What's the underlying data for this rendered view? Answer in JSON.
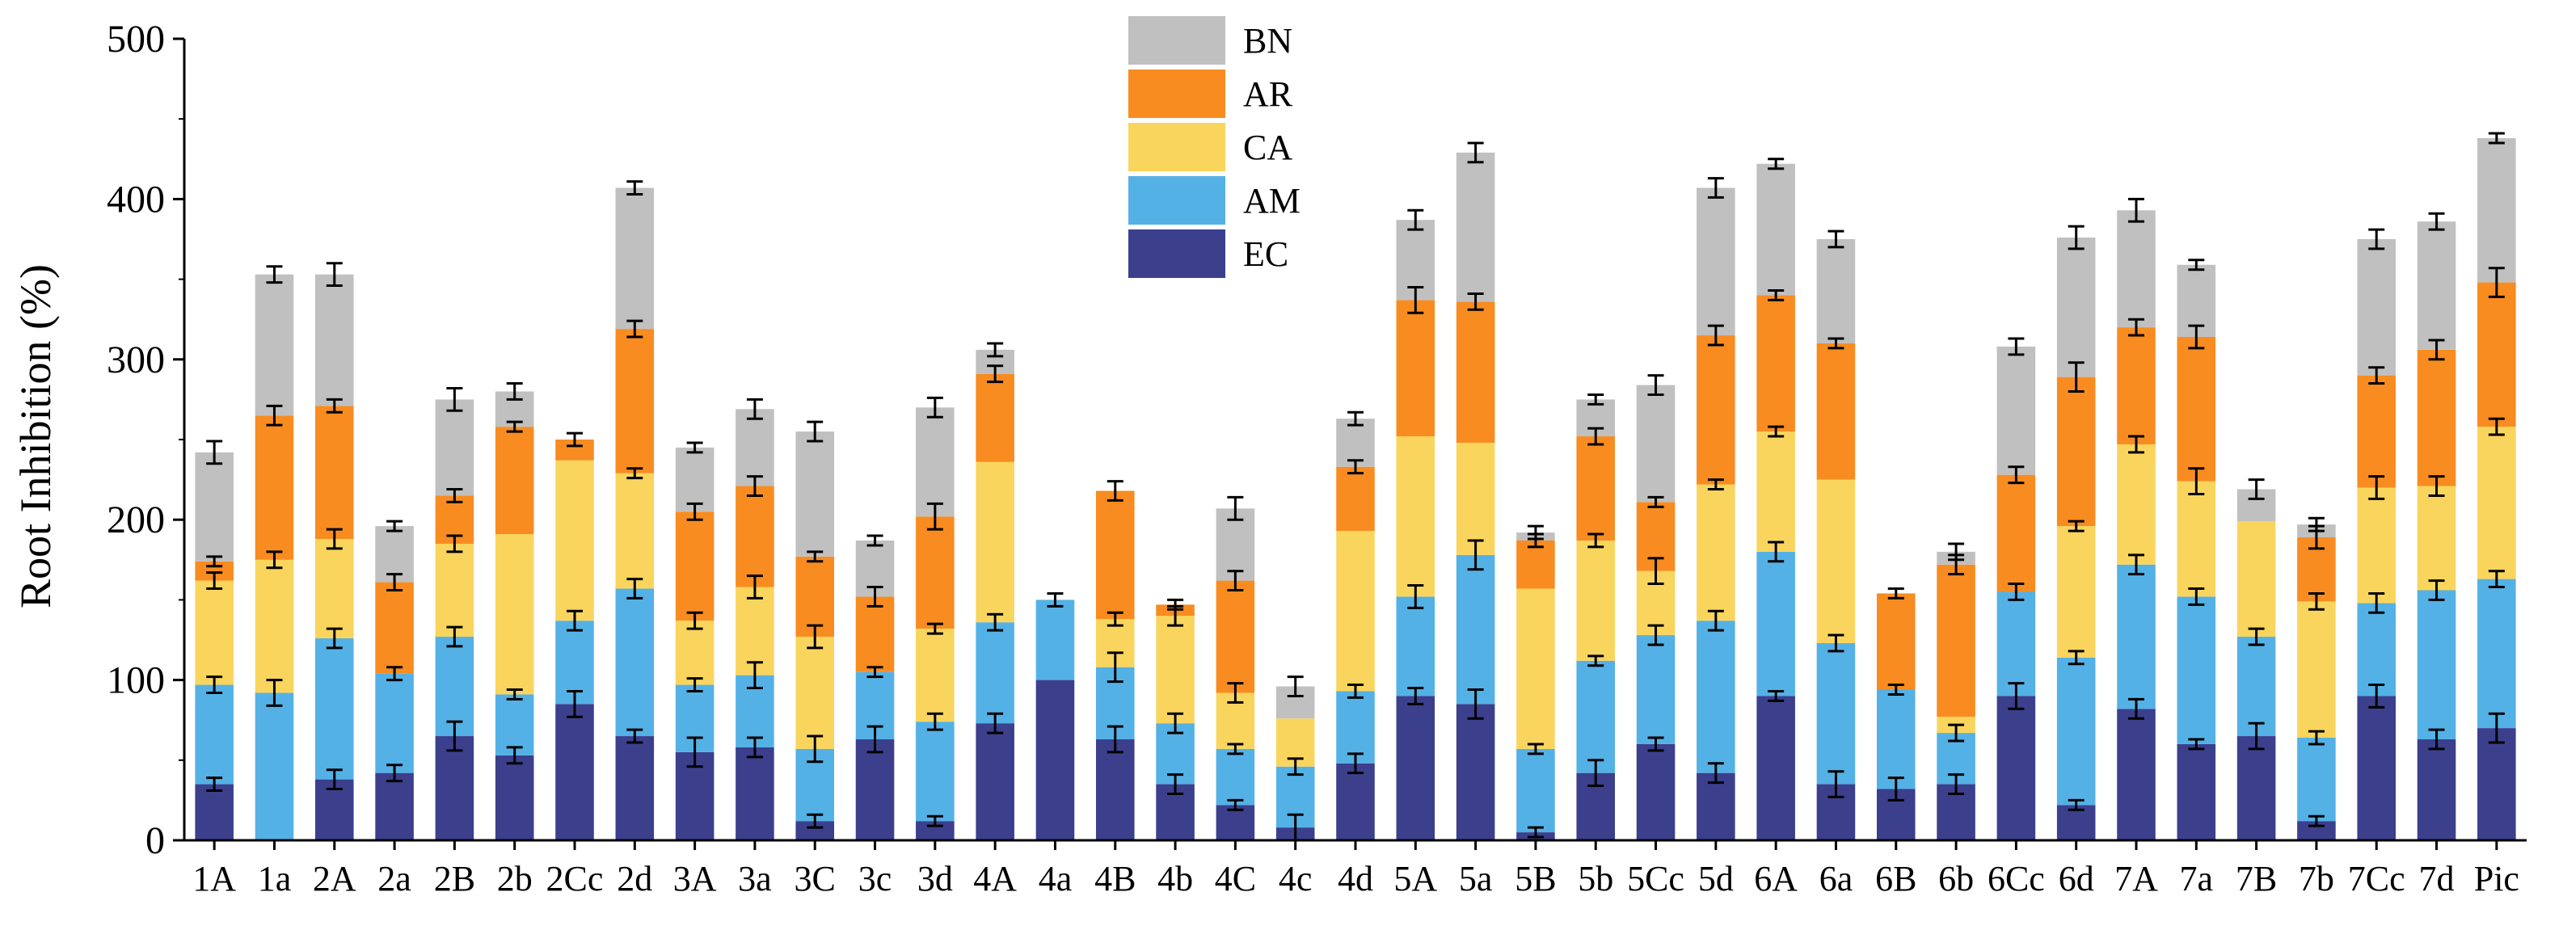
{
  "chart_data": {
    "type": "bar",
    "stacked": true,
    "title": "",
    "xlabel": "",
    "ylabel": "Root Inhibition (%)",
    "ylim": [
      0,
      500
    ],
    "yticks": [
      0,
      100,
      200,
      300,
      400,
      500
    ],
    "grid": false,
    "legend_position": "top-center",
    "categories": [
      "1A",
      "1a",
      "2A",
      "2a",
      "2B",
      "2b",
      "2Cc",
      "2d",
      "3A",
      "3a",
      "3C",
      "3c",
      "3d",
      "4A",
      "4a",
      "4B",
      "4b",
      "4C",
      "4c",
      "4d",
      "5A",
      "5a",
      "5B",
      "5b",
      "5Cc",
      "5d",
      "6A",
      "6a",
      "6B",
      "6b",
      "6Cc",
      "6d",
      "7A",
      "7a",
      "7B",
      "7b",
      "7Cc",
      "7d",
      "Pic"
    ],
    "series": [
      {
        "name": "EC",
        "color": "#3b3f8c",
        "values": [
          35,
          0,
          38,
          42,
          65,
          53,
          85,
          65,
          55,
          58,
          12,
          63,
          12,
          73,
          100,
          63,
          35,
          22,
          8,
          48,
          90,
          85,
          5,
          42,
          60,
          42,
          90,
          35,
          32,
          35,
          90,
          22,
          82,
          60,
          65,
          12,
          90,
          63,
          70
        ],
        "errors": [
          4,
          0,
          6,
          5,
          9,
          5,
          8,
          4,
          9,
          6,
          4,
          8,
          3,
          6,
          0,
          8,
          6,
          3,
          8,
          6,
          5,
          9,
          3,
          8,
          4,
          6,
          3,
          8,
          7,
          6,
          8,
          3,
          6,
          3,
          8,
          3,
          7,
          6,
          9
        ]
      },
      {
        "name": "AM",
        "color": "#54b1e6",
        "values": [
          62,
          92,
          88,
          62,
          62,
          38,
          52,
          92,
          42,
          45,
          45,
          42,
          62,
          63,
          50,
          45,
          38,
          35,
          38,
          45,
          62,
          93,
          52,
          70,
          68,
          95,
          90,
          88,
          62,
          32,
          65,
          92,
          90,
          92,
          62,
          52,
          58,
          93,
          93
        ],
        "errors": [
          5,
          8,
          6,
          4,
          6,
          3,
          6,
          6,
          4,
          8,
          8,
          3,
          5,
          5,
          4,
          9,
          6,
          3,
          5,
          4,
          7,
          9,
          3,
          3,
          6,
          6,
          6,
          5,
          3,
          5,
          5,
          4,
          6,
          5,
          5,
          4,
          6,
          6,
          5
        ]
      },
      {
        "name": "CA",
        "color": "#fad55d",
        "values": [
          65,
          83,
          62,
          0,
          58,
          100,
          100,
          72,
          40,
          55,
          70,
          0,
          58,
          100,
          0,
          30,
          67,
          35,
          30,
          100,
          100,
          70,
          100,
          75,
          40,
          85,
          75,
          102,
          0,
          10,
          0,
          82,
          75,
          72,
          72,
          85,
          72,
          65,
          95
        ],
        "errors": [
          5,
          5,
          6,
          0,
          5,
          0,
          0,
          3,
          5,
          7,
          7,
          0,
          3,
          0,
          0,
          4,
          6,
          6,
          0,
          0,
          0,
          0,
          0,
          4,
          8,
          3,
          3,
          0,
          0,
          0,
          0,
          3,
          5,
          8,
          0,
          5,
          7,
          6,
          5
        ]
      },
      {
        "name": "AR",
        "color": "#f88c20",
        "values": [
          12,
          90,
          83,
          57,
          30,
          67,
          13,
          90,
          68,
          63,
          50,
          47,
          70,
          55,
          0,
          80,
          7,
          70,
          0,
          40,
          85,
          88,
          30,
          65,
          43,
          93,
          85,
          85,
          60,
          95,
          73,
          93,
          73,
          90,
          0,
          40,
          70,
          85,
          90
        ],
        "errors": [
          3,
          6,
          4,
          5,
          4,
          3,
          4,
          5,
          5,
          6,
          3,
          6,
          8,
          5,
          0,
          6,
          3,
          6,
          0,
          4,
          8,
          5,
          4,
          5,
          3,
          6,
          3,
          3,
          3,
          6,
          5,
          9,
          5,
          7,
          0,
          7,
          5,
          6,
          9
        ]
      },
      {
        "name": "BN",
        "color": "#c0c0c0",
        "values": [
          68,
          88,
          82,
          35,
          60,
          22,
          0,
          88,
          40,
          48,
          78,
          35,
          68,
          15,
          0,
          0,
          0,
          45,
          20,
          30,
          50,
          93,
          5,
          23,
          73,
          92,
          82,
          65,
          0,
          8,
          80,
          87,
          73,
          45,
          20,
          8,
          85,
          80,
          90
        ],
        "errors": [
          7,
          5,
          7,
          3,
          7,
          5,
          0,
          4,
          3,
          6,
          6,
          3,
          6,
          4,
          0,
          0,
          0,
          7,
          6,
          4,
          6,
          6,
          4,
          3,
          6,
          6,
          3,
          5,
          0,
          5,
          5,
          7,
          7,
          3,
          6,
          4,
          6,
          5,
          3
        ]
      }
    ]
  }
}
